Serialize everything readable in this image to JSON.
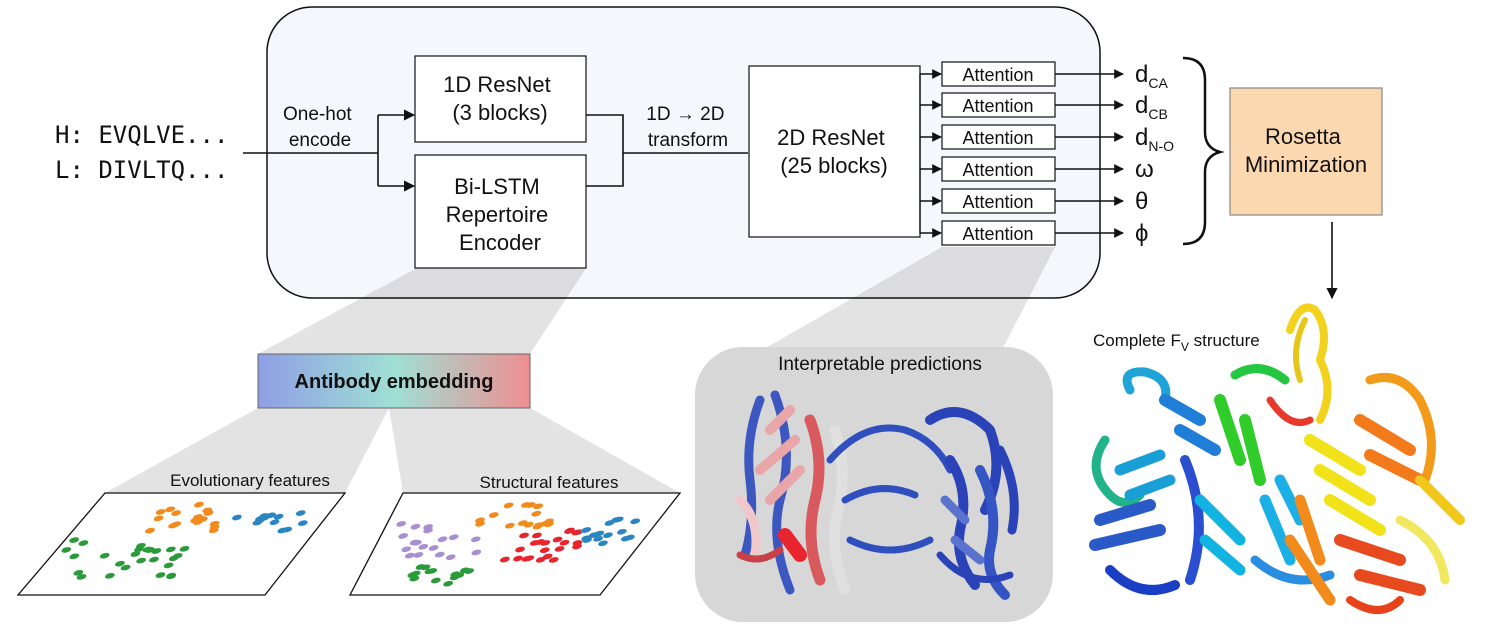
{
  "input": {
    "heavy": "H: EVQLVE...",
    "light": "L: DIVLTQ..."
  },
  "encode_label": [
    "One-hot",
    "encode"
  ],
  "resnet1d": [
    "1D ResNet",
    "(3 blocks)"
  ],
  "bilstm": [
    "Bi-LSTM",
    "Repertoire",
    "Encoder"
  ],
  "transform_label": [
    "1D → 2D",
    "transform"
  ],
  "resnet2d": [
    "2D ResNet",
    "(25 blocks)"
  ],
  "attention_label": "Attention",
  "outputs": [
    {
      "base": "d",
      "sub": "CA"
    },
    {
      "base": "d",
      "sub": "CB"
    },
    {
      "base": "d",
      "sub": "N-O"
    },
    {
      "base": "ω",
      "sub": ""
    },
    {
      "base": "θ",
      "sub": ""
    },
    {
      "base": "ϕ",
      "sub": ""
    }
  ],
  "rosetta": [
    "Rosetta",
    "Minimization"
  ],
  "complete_label": {
    "pre": "Complete F",
    "sub": "V",
    "post": " structure"
  },
  "embedding_label": "Antibody embedding",
  "interpretable_label": "Interpretable predictions",
  "evolutionary_label": "Evolutionary features",
  "structural_label": "Structural features",
  "colors": {
    "orange": "#f28a1c",
    "blue": "#2a86c3",
    "green": "#2a9a3a",
    "red": "#e8242c",
    "purple": "#a98fcf",
    "panel": "#f6f7fc",
    "rosetta": "#fcd8b0"
  }
}
